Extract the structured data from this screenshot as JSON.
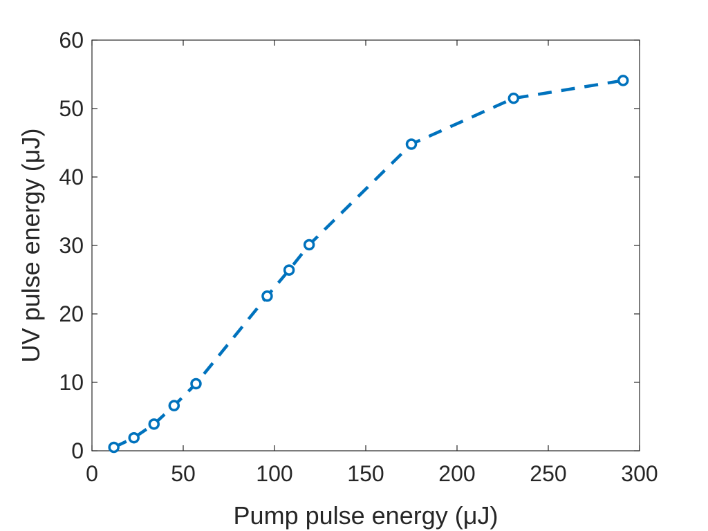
{
  "chart_data": {
    "type": "line",
    "title": "",
    "xlabel": "Pump pulse energy (μJ)",
    "ylabel": "UV pulse energy (μJ)",
    "xlim": [
      0,
      300
    ],
    "ylim": [
      0,
      60
    ],
    "xticks": [
      0,
      50,
      100,
      150,
      200,
      250,
      300
    ],
    "yticks": [
      0,
      10,
      20,
      30,
      40,
      50,
      60
    ],
    "grid": false,
    "series": [
      {
        "name": "UV pulse energy",
        "color": "#0072BD",
        "line_style": "dashed",
        "marker": "circle-open",
        "x": [
          12,
          23,
          34,
          45,
          57,
          96,
          108,
          119,
          175,
          231,
          291
        ],
        "y": [
          0.5,
          1.9,
          3.9,
          6.6,
          9.8,
          22.6,
          26.4,
          30.1,
          44.8,
          51.5,
          54.1
        ]
      }
    ]
  }
}
